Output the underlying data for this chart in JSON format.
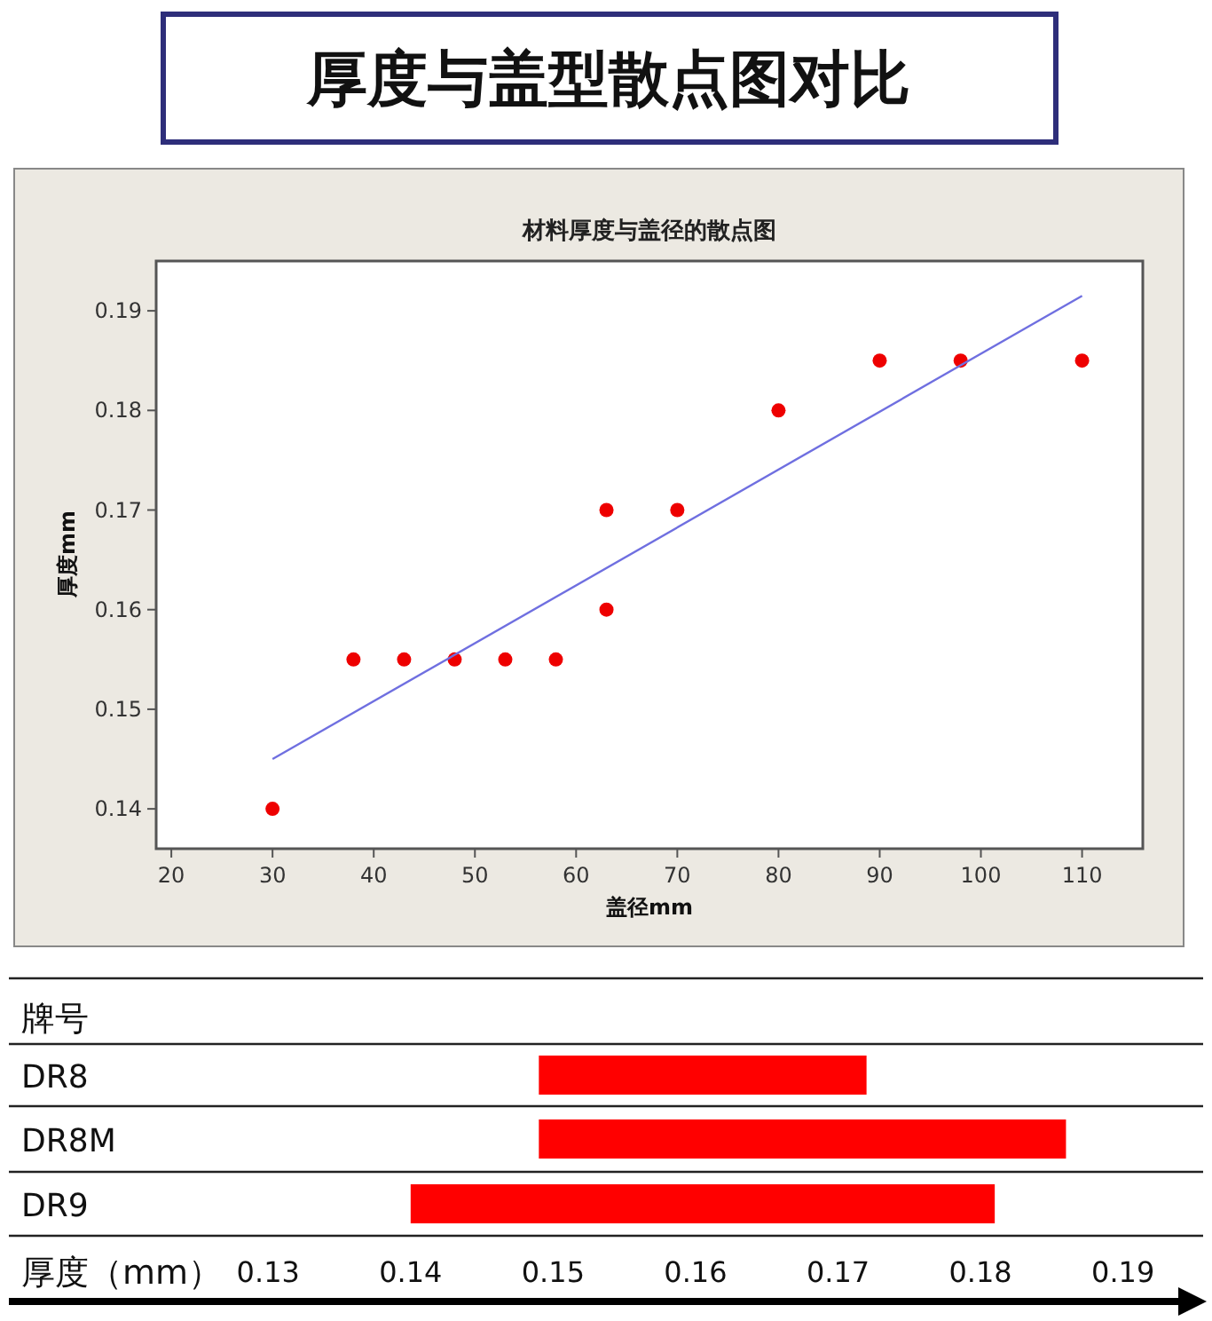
{
  "chart_data": [
    {
      "type": "scatter",
      "title": "厚度与盖型散点图对比",
      "subtitle": "材料厚度与盖径的散点图",
      "xlabel": "盖径mm",
      "ylabel": "厚度mm",
      "xlim": [
        18.5,
        116
      ],
      "ylim": [
        0.136,
        0.195
      ],
      "xticks": [
        20,
        30,
        40,
        50,
        60,
        70,
        80,
        90,
        100,
        110
      ],
      "yticks": [
        0.14,
        0.15,
        0.16,
        0.17,
        0.18,
        0.19
      ],
      "series": [
        {
          "type": "scatter",
          "marker": "circle",
          "color": "#ee0000",
          "x": [
            30,
            38,
            43,
            48,
            53,
            58,
            63,
            63,
            70,
            80,
            90,
            98,
            110
          ],
          "values": [
            0.14,
            0.155,
            0.155,
            0.155,
            0.155,
            0.155,
            0.17,
            0.16,
            0.17,
            0.18,
            0.185,
            0.185,
            0.185
          ]
        },
        {
          "type": "line",
          "color": "#6f6fe0",
          "x": [
            30,
            110
          ],
          "values": [
            0.145,
            0.1915
          ]
        }
      ]
    },
    {
      "type": "bar",
      "orientation": "horizontal",
      "ylabel": "牌号",
      "xlabel": "厚度（mm）",
      "categories": [
        "DR8",
        "DR8M",
        "DR9"
      ],
      "base": [
        0.149,
        0.149,
        0.14
      ],
      "values": [
        0.023,
        0.037,
        0.041
      ],
      "color": "#ff0000",
      "xlim": [
        0.1118,
        0.196
      ],
      "xticks": [
        0.13,
        0.14,
        0.15,
        0.16,
        0.17,
        0.18,
        0.19
      ]
    }
  ]
}
